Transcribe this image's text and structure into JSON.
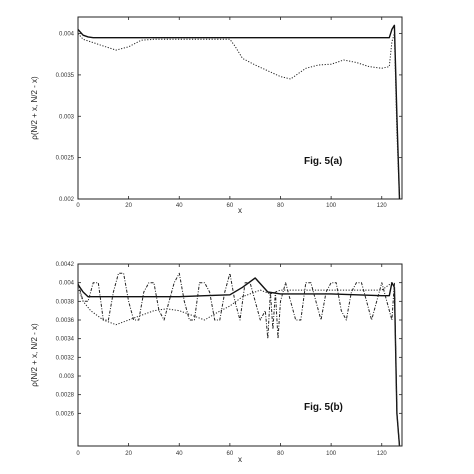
{
  "chart_data": [
    {
      "type": "line",
      "annotation": "Fig. 5(a)",
      "xlabel": "x",
      "ylabel": "ρ(N/2 + x, N/2 - x)",
      "xlim": [
        0,
        128
      ],
      "ylim": [
        0.002,
        0.0042
      ],
      "x_ticks": [
        "0",
        "20",
        "40",
        "60",
        "80",
        "100",
        "120"
      ],
      "y_ticks": [
        "0.002",
        "0.0025",
        "0.003",
        "0.0035",
        "0.004"
      ],
      "y_tick_values": [
        0.002,
        0.0025,
        0.003,
        0.0035,
        0.004
      ],
      "series": [
        {
          "style": "solid",
          "x": [
            0,
            2,
            4,
            6,
            10,
            20,
            40,
            60,
            80,
            100,
            110,
            120,
            123,
            124,
            125,
            126,
            127
          ],
          "y": [
            0.00405,
            0.00398,
            0.00396,
            0.00395,
            0.00395,
            0.00395,
            0.00395,
            0.00395,
            0.00395,
            0.00395,
            0.00395,
            0.00395,
            0.00395,
            0.00405,
            0.0041,
            0.003,
            0.002
          ]
        },
        {
          "style": "dotted",
          "x": [
            0,
            2,
            5,
            10,
            15,
            20,
            25,
            30,
            40,
            50,
            60,
            62,
            65,
            70,
            75,
            80,
            84,
            90,
            95,
            100,
            105,
            110,
            115,
            120,
            123,
            124,
            125,
            126,
            127
          ],
          "y": [
            0.004,
            0.00393,
            0.0039,
            0.00385,
            0.0038,
            0.00384,
            0.00392,
            0.00393,
            0.00393,
            0.00393,
            0.00393,
            0.00385,
            0.0037,
            0.00362,
            0.00355,
            0.00348,
            0.00345,
            0.00358,
            0.00362,
            0.00363,
            0.00368,
            0.00365,
            0.0036,
            0.00358,
            0.0036,
            0.0039,
            0.004,
            0.0028,
            0.002
          ]
        }
      ]
    },
    {
      "type": "line",
      "annotation": "Fig. 5(b)",
      "xlabel": "x",
      "ylabel": "ρ(N/2 + x, N/2 - x)",
      "xlim": [
        0,
        128
      ],
      "ylim": [
        0.00225,
        0.0042
      ],
      "x_ticks": [
        "0",
        "20",
        "40",
        "60",
        "80",
        "100",
        "120"
      ],
      "y_ticks": [
        "0.0026",
        "0.0028",
        "0.003",
        "0.0032",
        "0.0034",
        "0.0036",
        "0.0038",
        "0.004",
        "0.0042"
      ],
      "y_tick_values": [
        0.0026,
        0.0028,
        0.003,
        0.0032,
        0.0034,
        0.0036,
        0.0038,
        0.004,
        0.0042
      ],
      "series": [
        {
          "style": "solid",
          "x": [
            0,
            2,
            4,
            10,
            20,
            30,
            40,
            50,
            60,
            65,
            70,
            75,
            80,
            90,
            100,
            110,
            120,
            123,
            124,
            125,
            126,
            127
          ],
          "y": [
            0.00398,
            0.0039,
            0.00385,
            0.00385,
            0.00385,
            0.00385,
            0.00385,
            0.00386,
            0.00387,
            0.00395,
            0.00405,
            0.0039,
            0.00388,
            0.00388,
            0.00388,
            0.00387,
            0.00386,
            0.00386,
            0.004,
            0.00395,
            0.0026,
            0.0022
          ]
        },
        {
          "style": "dashed-dot",
          "x": [
            0,
            2,
            4,
            6,
            8,
            10,
            12,
            14,
            16,
            18,
            20,
            22,
            24,
            26,
            28,
            30,
            32,
            34,
            36,
            38,
            40,
            42,
            44,
            46,
            48,
            50,
            52,
            54,
            56,
            58,
            60,
            62,
            64,
            66,
            68,
            70,
            72,
            74,
            75,
            76,
            77,
            78,
            79,
            80,
            82,
            84,
            86,
            88,
            90,
            92,
            94,
            96,
            98,
            100,
            102,
            104,
            106,
            108,
            110,
            112,
            114,
            116,
            118,
            120,
            122,
            124,
            125,
            126,
            127
          ],
          "y": [
            0.004,
            0.0038,
            0.0038,
            0.004,
            0.004,
            0.0036,
            0.0036,
            0.0039,
            0.0041,
            0.0041,
            0.0038,
            0.0036,
            0.0036,
            0.0039,
            0.004,
            0.004,
            0.0037,
            0.0036,
            0.0038,
            0.004,
            0.0041,
            0.0038,
            0.0036,
            0.0036,
            0.004,
            0.004,
            0.0039,
            0.0036,
            0.0036,
            0.0039,
            0.0041,
            0.0038,
            0.0036,
            0.004,
            0.004,
            0.0038,
            0.0036,
            0.0037,
            0.0034,
            0.0039,
            0.0035,
            0.0039,
            0.0034,
            0.0038,
            0.004,
            0.0038,
            0.0036,
            0.0036,
            0.004,
            0.004,
            0.0038,
            0.0036,
            0.0039,
            0.004,
            0.004,
            0.0037,
            0.0036,
            0.0039,
            0.004,
            0.004,
            0.0038,
            0.0036,
            0.0038,
            0.004,
            0.0038,
            0.0036,
            0.004,
            0.0026,
            0.0022
          ]
        },
        {
          "style": "dotted",
          "x": [
            0,
            2,
            5,
            10,
            15,
            20,
            25,
            30,
            35,
            40,
            45,
            50,
            55,
            60,
            65,
            70,
            72,
            74,
            76,
            78,
            80,
            90,
            100,
            110,
            120,
            124,
            125,
            126,
            127
          ],
          "y": [
            0.00395,
            0.0038,
            0.0037,
            0.0036,
            0.00355,
            0.0036,
            0.00365,
            0.0037,
            0.00372,
            0.0037,
            0.00365,
            0.0036,
            0.00368,
            0.00375,
            0.00385,
            0.0039,
            0.00392,
            0.0039,
            0.00388,
            0.0039,
            0.00392,
            0.00392,
            0.00392,
            0.00392,
            0.00392,
            0.004,
            0.00395,
            0.0026,
            0.0022
          ]
        }
      ]
    }
  ]
}
